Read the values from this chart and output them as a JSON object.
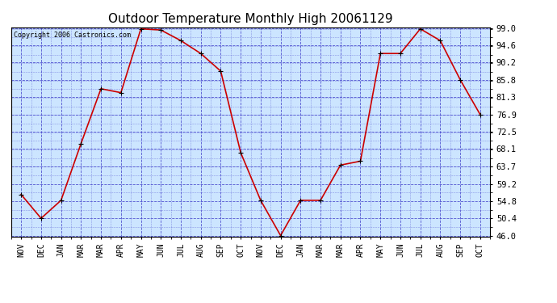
{
  "title": "Outdoor Temperature Monthly High 20061129",
  "copyright": "Copyright 2006 Castronics.com",
  "x_labels": [
    "NOV",
    "DEC",
    "JAN",
    "MAR",
    "MAR",
    "APR",
    "MAY",
    "JUN",
    "JUL",
    "AUG",
    "SEP",
    "OCT",
    "NOV",
    "DEC",
    "JAN",
    "MAR",
    "MAR",
    "APR",
    "MAY",
    "JUN",
    "JUL",
    "AUG",
    "SEP",
    "OCT"
  ],
  "y_values": [
    56.5,
    50.4,
    55.0,
    69.5,
    83.5,
    82.5,
    98.8,
    98.5,
    95.8,
    92.5,
    88.0,
    67.2,
    55.0,
    46.0,
    55.0,
    55.0,
    64.0,
    65.0,
    92.5,
    92.5,
    98.8,
    95.8,
    85.8,
    76.9
  ],
  "y_min": 46.0,
  "y_max": 99.0,
  "y_ticks": [
    46.0,
    50.4,
    54.8,
    59.2,
    63.7,
    68.1,
    72.5,
    76.9,
    81.3,
    85.8,
    90.2,
    94.6,
    99.0
  ],
  "line_color": "#cc0000",
  "marker_color": "#cc0000",
  "bg_color": "#cce5ff",
  "grid_color": "#4444cc",
  "title_fontsize": 11,
  "axis_label_fontsize": 7,
  "tick_fontsize": 7.5,
  "copyright_fontsize": 6
}
